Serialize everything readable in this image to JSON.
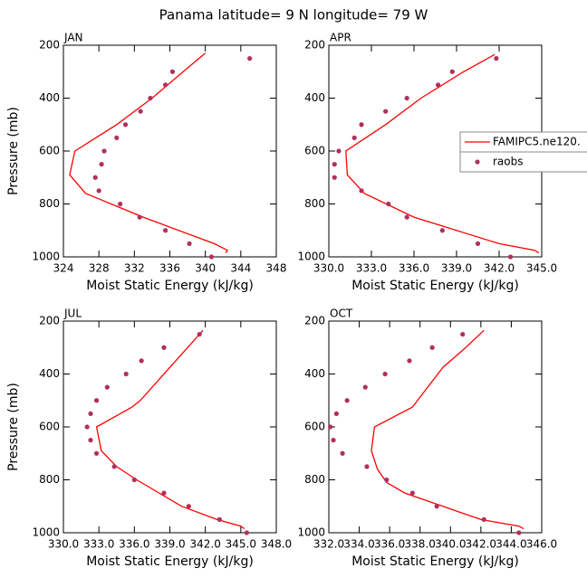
{
  "title": "Panama  latitude= 9 N longitude= 79 W",
  "chart_data": [
    {
      "type": "line",
      "title": "JAN",
      "x_label": "Moist Static Energy (kJ/kg)",
      "y_label": "Pressure (mb)",
      "xlim": [
        324,
        348
      ],
      "xticks": [
        324,
        328,
        332,
        336,
        340,
        344,
        348
      ],
      "ylim": [
        200,
        1000
      ],
      "yticks": [
        200,
        400,
        600,
        800,
        1000
      ],
      "y_inverted": true,
      "series": [
        {
          "type": "line",
          "color": "#ff0000",
          "x": [
            340,
            337.5,
            334,
            330,
            325.3,
            324.7,
            326.5,
            333,
            341,
            342.5,
            342.3
          ],
          "y": [
            230,
            300,
            400,
            500,
            600,
            690,
            760,
            850,
            950,
            975,
            985
          ]
        },
        {
          "type": "scatter",
          "color": "#b03060",
          "x": [
            345,
            336.3,
            335.5,
            333.8,
            332.7,
            331,
            330,
            328.6,
            328.3,
            327.6,
            328,
            330.4,
            332.6,
            335.5,
            338.2,
            340.7
          ],
          "y": [
            250,
            300,
            350,
            400,
            450,
            500,
            550,
            600,
            650,
            700,
            750,
            800,
            850,
            900,
            950,
            1000
          ]
        }
      ]
    },
    {
      "type": "line",
      "title": "APR",
      "x_label": "Moist Static Energy (kJ/kg)",
      "legend": "center right",
      "xlim": [
        330,
        345
      ],
      "xticks": [
        {
          "value": 330,
          "label": "330.0"
        },
        {
          "value": 333,
          "label": "333.0"
        },
        {
          "value": 336,
          "label": "336.0"
        },
        {
          "value": 339,
          "label": "339.0"
        },
        {
          "value": 342,
          "label": "342.0"
        },
        {
          "value": 345,
          "label": "345.0"
        }
      ],
      "ylim": [
        200,
        1000
      ],
      "yticks": [
        200,
        400,
        600,
        800,
        1000
      ],
      "y_inverted": true,
      "series": [
        {
          "type": "line",
          "name": "FAMIPC5.ne120.",
          "color": "#ff0000",
          "x": [
            341.7,
            339.5,
            336.5,
            334,
            331.2,
            331.3,
            332.5,
            336,
            342,
            344.5,
            344.8
          ],
          "y": [
            235,
            300,
            400,
            500,
            600,
            690,
            760,
            850,
            950,
            975,
            985
          ]
        },
        {
          "type": "scatter",
          "name": "raobs",
          "color": "#b03060",
          "x": [
            341.8,
            338.7,
            337.7,
            335.5,
            334,
            332.3,
            331.8,
            330.7,
            330.4,
            330.4,
            332.3,
            334.2,
            335.5,
            338,
            340.5,
            342.8
          ],
          "y": [
            250,
            300,
            350,
            400,
            450,
            500,
            550,
            600,
            650,
            700,
            750,
            800,
            850,
            900,
            950,
            1000
          ]
        }
      ]
    },
    {
      "type": "line",
      "title": "JUL",
      "x_label": "Moist Static Energy (kJ/kg)",
      "y_label": "Pressure (mb)",
      "xlim": [
        330,
        348
      ],
      "xticks": [
        {
          "value": 330,
          "label": "330.0"
        },
        {
          "value": 333,
          "label": "333.0"
        },
        {
          "value": 336,
          "label": "336.0"
        },
        {
          "value": 339,
          "label": "339.0"
        },
        {
          "value": 342,
          "label": "342.0"
        },
        {
          "value": 345,
          "label": "345.0"
        },
        {
          "value": 348,
          "label": "348.0"
        }
      ],
      "ylim": [
        200,
        1000
      ],
      "yticks": [
        200,
        400,
        600,
        800,
        1000
      ],
      "y_inverted": true,
      "series": [
        {
          "type": "line",
          "color": "#ff0000",
          "x": [
            341.8,
            340.5,
            339,
            336.5,
            335.8,
            332.8,
            333.2,
            334.5,
            336.2,
            340,
            343,
            345,
            345.3
          ],
          "y": [
            235,
            300,
            375,
            500,
            525,
            600,
            690,
            750,
            800,
            900,
            950,
            975,
            985
          ]
        },
        {
          "type": "scatter",
          "color": "#b03060",
          "x": [
            341.5,
            338.5,
            336.6,
            335.3,
            333.7,
            332.8,
            332.3,
            332,
            332.3,
            332.8,
            334.3,
            336,
            338.5,
            340.6,
            343.2,
            345.5
          ],
          "y": [
            250,
            300,
            350,
            400,
            450,
            500,
            550,
            600,
            650,
            700,
            750,
            800,
            850,
            900,
            950,
            1000
          ]
        }
      ]
    },
    {
      "type": "line",
      "title": "OCT",
      "x_label": "Moist Static Energy (kJ/kg)",
      "xlim": [
        332,
        346
      ],
      "xticks": [
        {
          "value": 332,
          "label": "332.0"
        },
        {
          "value": 334,
          "label": "334.0"
        },
        {
          "value": 336,
          "label": "336.0"
        },
        {
          "value": 338,
          "label": "338.0"
        },
        {
          "value": 340,
          "label": "340.0"
        },
        {
          "value": 342,
          "label": "342.0"
        },
        {
          "value": 344,
          "label": "344.0"
        },
        {
          "value": 346,
          "label": "346.0"
        }
      ],
      "ylim": [
        200,
        1000
      ],
      "yticks": [
        200,
        400,
        600,
        800,
        1000
      ],
      "y_inverted": true,
      "series": [
        {
          "type": "line",
          "color": "#ff0000",
          "x": [
            342.2,
            341,
            339.5,
            338.5,
            337.5,
            335,
            334.8,
            335.2,
            335.8,
            337,
            339.5,
            342,
            344.5,
            344.8
          ],
          "y": [
            235,
            300,
            375,
            450,
            525,
            600,
            690,
            760,
            810,
            850,
            900,
            950,
            975,
            985
          ]
        },
        {
          "type": "scatter",
          "color": "#b03060",
          "x": [
            340.8,
            338.8,
            337.3,
            335.7,
            334.4,
            333.2,
            332.5,
            332.1,
            332.3,
            332.9,
            334.5,
            335.8,
            337.5,
            339.1,
            342.2,
            344.5
          ],
          "y": [
            250,
            300,
            350,
            400,
            450,
            500,
            550,
            600,
            650,
            700,
            750,
            800,
            850,
            900,
            950,
            1000
          ]
        }
      ]
    }
  ]
}
